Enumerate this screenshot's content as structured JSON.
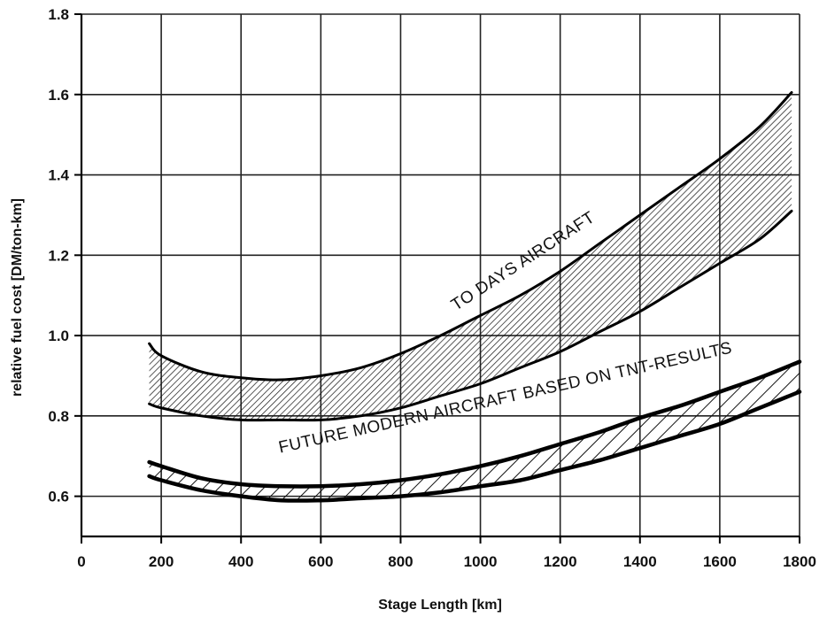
{
  "chart_data": {
    "type": "area",
    "xlabel": "Stage Length [km]",
    "ylabel": "relative fuel cost [DM/ton-km]",
    "xlim": [
      0,
      1800
    ],
    "ylim": [
      0.5,
      1.8
    ],
    "x_ticks": [
      0,
      200,
      400,
      600,
      800,
      1000,
      1200,
      1400,
      1600,
      1800
    ],
    "y_ticks": [
      0.6,
      0.8,
      1.0,
      1.2,
      1.4,
      1.6,
      1.8
    ],
    "grid": true,
    "series": [
      {
        "name": "TO DAYS AIRCRAFT",
        "x": [
          170,
          200,
          300,
          400,
          500,
          600,
          700,
          800,
          900,
          1000,
          1100,
          1200,
          1300,
          1400,
          1500,
          1600,
          1700,
          1780
        ],
        "upper": [
          0.98,
          0.95,
          0.91,
          0.895,
          0.89,
          0.9,
          0.92,
          0.955,
          1.0,
          1.05,
          1.1,
          1.16,
          1.23,
          1.3,
          1.37,
          1.44,
          1.52,
          1.605
        ],
        "lower": [
          0.83,
          0.82,
          0.8,
          0.79,
          0.79,
          0.79,
          0.8,
          0.82,
          0.85,
          0.88,
          0.92,
          0.96,
          1.01,
          1.06,
          1.12,
          1.18,
          1.24,
          1.31
        ]
      },
      {
        "name": "FUTURE MODERN AIRCRAFT BASED ON TNT-RESULTS",
        "x": [
          170,
          200,
          300,
          400,
          500,
          600,
          700,
          800,
          900,
          1000,
          1100,
          1200,
          1300,
          1400,
          1500,
          1600,
          1700,
          1800
        ],
        "upper": [
          0.685,
          0.675,
          0.645,
          0.63,
          0.625,
          0.625,
          0.63,
          0.64,
          0.655,
          0.675,
          0.7,
          0.73,
          0.76,
          0.795,
          0.825,
          0.86,
          0.895,
          0.935
        ],
        "lower": [
          0.65,
          0.64,
          0.615,
          0.6,
          0.59,
          0.59,
          0.595,
          0.6,
          0.61,
          0.625,
          0.64,
          0.665,
          0.69,
          0.72,
          0.75,
          0.78,
          0.82,
          0.86
        ]
      }
    ]
  }
}
